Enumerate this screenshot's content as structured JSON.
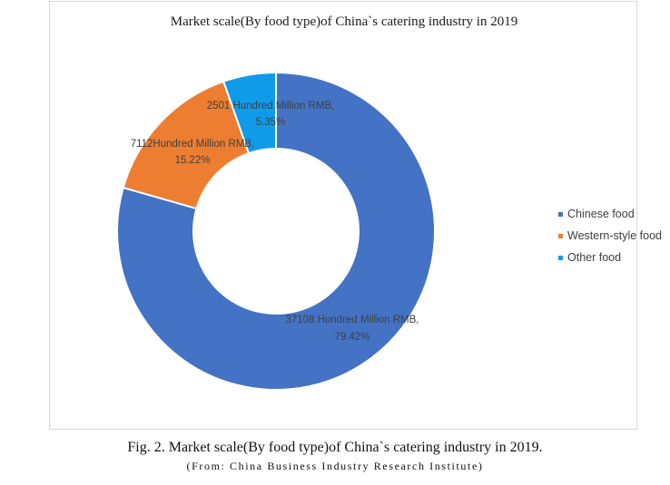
{
  "chart_data": {
    "type": "pie",
    "variant": "donut",
    "title": "Market scale(By food type)of China`s catering industry in 2019",
    "slices": [
      {
        "name": "Chinese food",
        "value": 37108,
        "percent": 79.42,
        "value_label": "37108 Hundred Million RMB,",
        "percent_label": "79.42%",
        "color": "#4472C4"
      },
      {
        "name": "Western-style food",
        "value": 7112,
        "percent": 15.22,
        "value_label": "7112Hundred Million RMB,",
        "percent_label": "15.22%",
        "color": "#ED7D31"
      },
      {
        "name": "Other food",
        "value": 2501,
        "percent": 5.35,
        "value_label": "2501 Hundred Million RMB,",
        "percent_label": "5.35%",
        "color": "#0F9BEA"
      }
    ],
    "legend_position": "right"
  },
  "caption": {
    "main": "Fig. 2. Market scale(By food type)of China`s catering industry in 2019.",
    "source": "(From: China Business Industry Research Institute)"
  }
}
